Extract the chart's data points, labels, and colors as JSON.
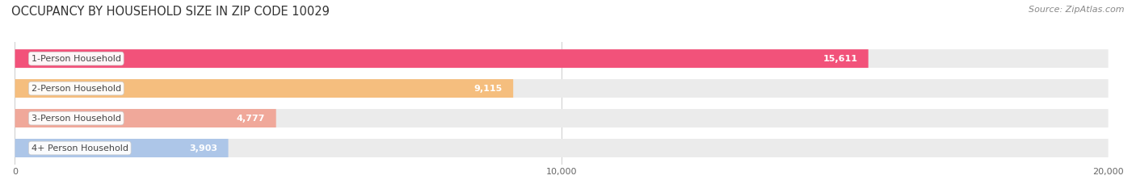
{
  "title": "OCCUPANCY BY HOUSEHOLD SIZE IN ZIP CODE 10029",
  "source": "Source: ZipAtlas.com",
  "categories": [
    "1-Person Household",
    "2-Person Household",
    "3-Person Household",
    "4+ Person Household"
  ],
  "values": [
    15611,
    9115,
    4777,
    3903
  ],
  "bar_colors": [
    "#F2527A",
    "#F5BE7E",
    "#F0A89A",
    "#ADC6E8"
  ],
  "bar_bg_color": "#EBEBEB",
  "xlim": [
    0,
    20000
  ],
  "xtick_labels": [
    "0",
    "10,000",
    "20,000"
  ],
  "title_fontsize": 10.5,
  "source_fontsize": 8,
  "label_fontsize": 8,
  "value_fontsize": 8,
  "figsize": [
    14.06,
    2.33
  ],
  "dpi": 100,
  "background_color": "#FFFFFF"
}
